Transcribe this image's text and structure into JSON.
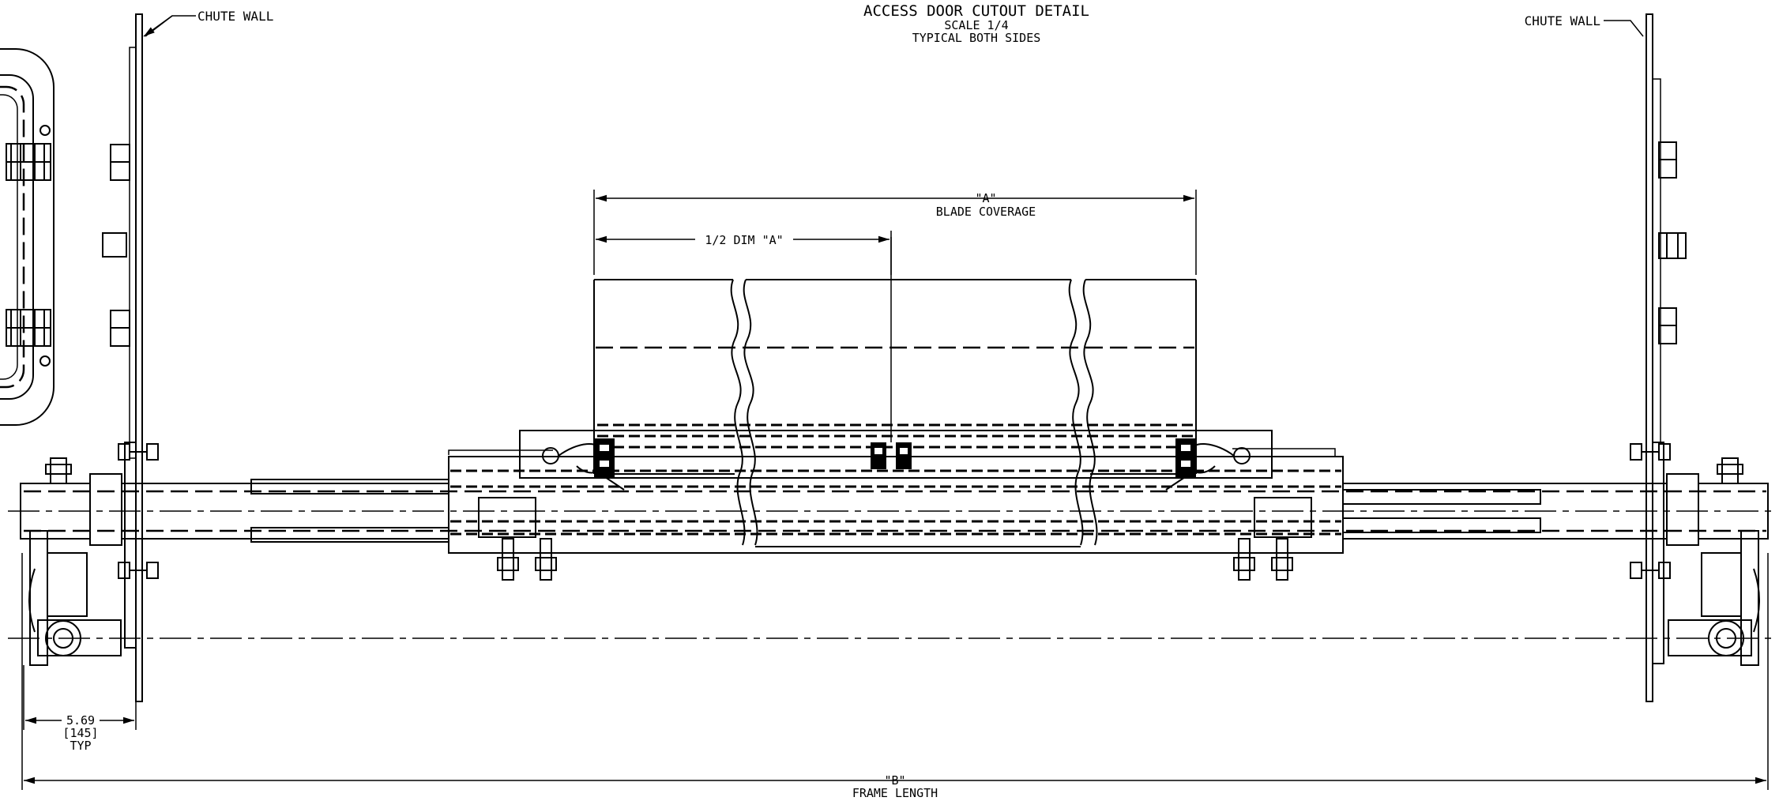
{
  "title": {
    "line1": "ACCESS DOOR CUTOUT DETAIL",
    "line2": "SCALE  1/4",
    "line3": "TYPICAL BOTH SIDES"
  },
  "labels": {
    "chute_wall_left": "CHUTE WALL",
    "chute_wall_right": "CHUTE WALL"
  },
  "dimensions": {
    "dim_a": {
      "symbol": "\"A\"",
      "text": "BLADE COVERAGE"
    },
    "half_dim_a": "1/2 DIM \"A\"",
    "dim_b": {
      "symbol": "\"B\"",
      "text": "FRAME LENGTH"
    },
    "offset": {
      "value": "5.69",
      "metric": "[145]",
      "note": "TYP"
    }
  }
}
